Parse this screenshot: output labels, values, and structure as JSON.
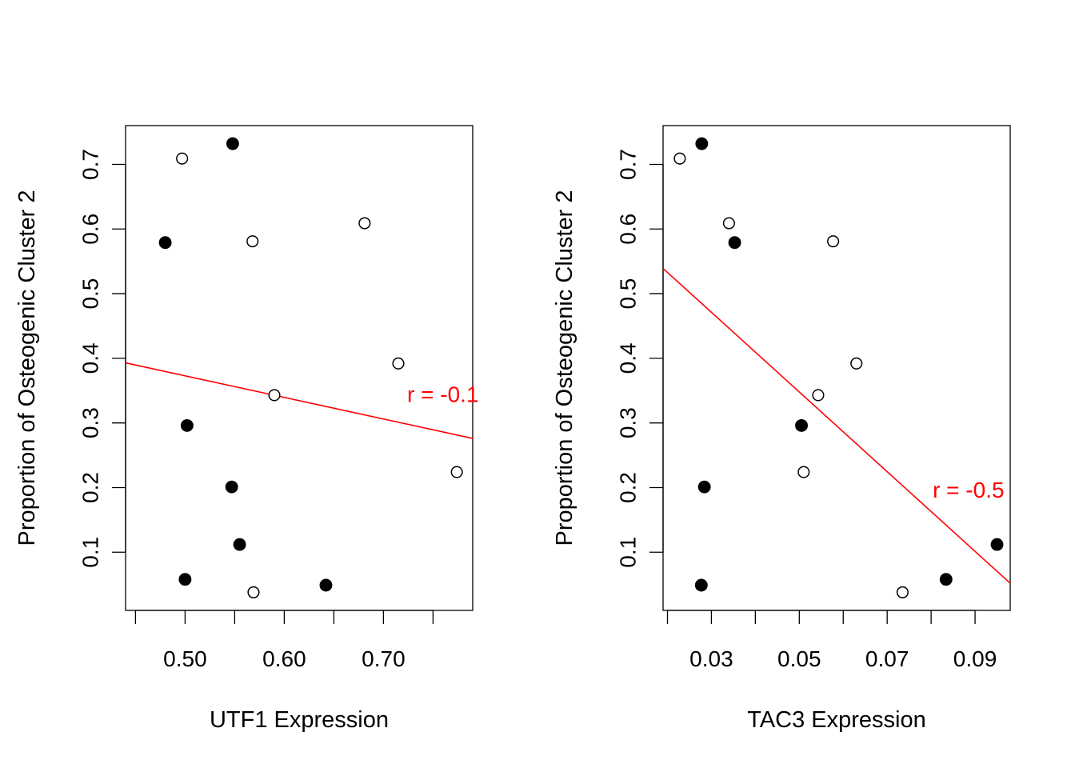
{
  "chart_data": [
    {
      "type": "scatter",
      "title": "",
      "xlabel": "UTF1 Expression",
      "ylabel": "Proportion of Osteogenic Cluster 2",
      "xlim": [
        0.44,
        0.79
      ],
      "ylim": [
        0.01,
        0.76
      ],
      "xticks": [
        0.45,
        0.5,
        0.55,
        0.6,
        0.65,
        0.7,
        0.75
      ],
      "xtick_labels": [
        "0.50",
        "0.60",
        "0.70"
      ],
      "xtick_label_values": [
        0.5,
        0.6,
        0.7
      ],
      "yticks": [
        0.1,
        0.2,
        0.3,
        0.4,
        0.5,
        0.6,
        0.7
      ],
      "ytick_labels": [
        "0.1",
        "0.2",
        "0.3",
        "0.4",
        "0.5",
        "0.6",
        "0.7"
      ],
      "series": [
        {
          "name": "filled",
          "marker": "filled-circle",
          "points": [
            {
              "x": 0.548,
              "y": 0.732
            },
            {
              "x": 0.48,
              "y": 0.579
            },
            {
              "x": 0.502,
              "y": 0.296
            },
            {
              "x": 0.547,
              "y": 0.201
            },
            {
              "x": 0.555,
              "y": 0.112
            },
            {
              "x": 0.5,
              "y": 0.058
            },
            {
              "x": 0.642,
              "y": 0.049
            }
          ]
        },
        {
          "name": "open",
          "marker": "open-circle",
          "points": [
            {
              "x": 0.497,
              "y": 0.709
            },
            {
              "x": 0.568,
              "y": 0.581
            },
            {
              "x": 0.681,
              "y": 0.609
            },
            {
              "x": 0.715,
              "y": 0.392
            },
            {
              "x": 0.59,
              "y": 0.343
            },
            {
              "x": 0.774,
              "y": 0.224
            },
            {
              "x": 0.569,
              "y": 0.038
            }
          ]
        }
      ],
      "fit_line": {
        "x1": 0.44,
        "y1": 0.393,
        "x2": 0.79,
        "y2": 0.276,
        "color": "#ff0000"
      },
      "annotation": {
        "text": "r = -0.1",
        "x": 0.76,
        "y": 0.344,
        "color": "#ff0000"
      }
    },
    {
      "type": "scatter",
      "title": "",
      "xlabel": "TAC3 Expression",
      "ylabel": "Proportion of Osteogenic Cluster 2",
      "xlim": [
        0.019,
        0.098
      ],
      "ylim": [
        0.01,
        0.76
      ],
      "xticks": [
        0.02,
        0.03,
        0.04,
        0.05,
        0.06,
        0.07,
        0.08,
        0.09
      ],
      "xtick_labels": [
        "0.03",
        "0.05",
        "0.07",
        "0.09"
      ],
      "xtick_label_values": [
        0.03,
        0.05,
        0.07,
        0.09
      ],
      "yticks": [
        0.1,
        0.2,
        0.3,
        0.4,
        0.5,
        0.6,
        0.7
      ],
      "ytick_labels": [
        "0.1",
        "0.2",
        "0.3",
        "0.4",
        "0.5",
        "0.6",
        "0.7"
      ],
      "series": [
        {
          "name": "filled",
          "marker": "filled-circle",
          "points": [
            {
              "x": 0.0278,
              "y": 0.732
            },
            {
              "x": 0.0353,
              "y": 0.579
            },
            {
              "x": 0.0505,
              "y": 0.296
            },
            {
              "x": 0.0284,
              "y": 0.201
            },
            {
              "x": 0.095,
              "y": 0.112
            },
            {
              "x": 0.0834,
              "y": 0.058
            },
            {
              "x": 0.0277,
              "y": 0.049
            }
          ]
        },
        {
          "name": "open",
          "marker": "open-circle",
          "points": [
            {
              "x": 0.0228,
              "y": 0.709
            },
            {
              "x": 0.034,
              "y": 0.609
            },
            {
              "x": 0.0577,
              "y": 0.581
            },
            {
              "x": 0.063,
              "y": 0.392
            },
            {
              "x": 0.0543,
              "y": 0.343
            },
            {
              "x": 0.051,
              "y": 0.224
            },
            {
              "x": 0.0735,
              "y": 0.038
            }
          ]
        }
      ],
      "fit_line": {
        "x1": 0.019,
        "y1": 0.539,
        "x2": 0.098,
        "y2": 0.052,
        "color": "#ff0000"
      },
      "annotation": {
        "text": "r = -0.5",
        "x": 0.0885,
        "y": 0.196,
        "color": "#ff0000"
      }
    }
  ]
}
